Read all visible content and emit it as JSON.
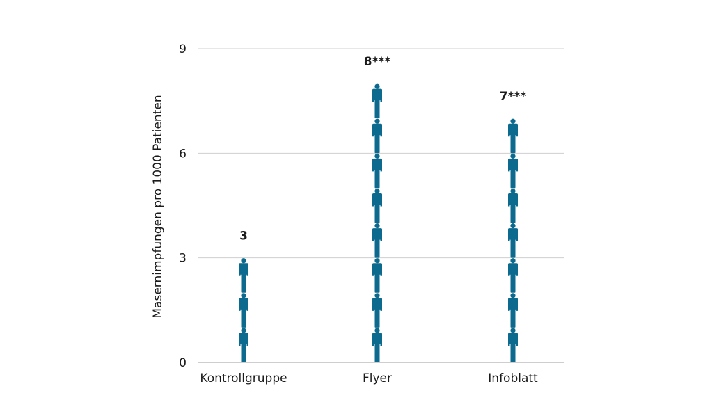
{
  "chart_data": {
    "type": "bar",
    "style": "pictogram",
    "categories": [
      "Kontrollgruppe",
      "Flyer",
      "Infoblatt"
    ],
    "values": [
      3,
      8,
      7
    ],
    "value_labels": [
      "3",
      "8***",
      "7***"
    ],
    "ylabel": "Masernimpfungen pro 1000 Patienten",
    "ylim": [
      0,
      9
    ],
    "yticks": [
      0,
      3,
      6,
      9
    ],
    "ytick_labels": [
      "0",
      "3",
      "6",
      "9"
    ],
    "grid": true,
    "icon": "person-icon",
    "colors": {
      "icon": "#0b6a8e",
      "grid": "#cfcfcf",
      "baseline": "#bdbdbd"
    }
  }
}
